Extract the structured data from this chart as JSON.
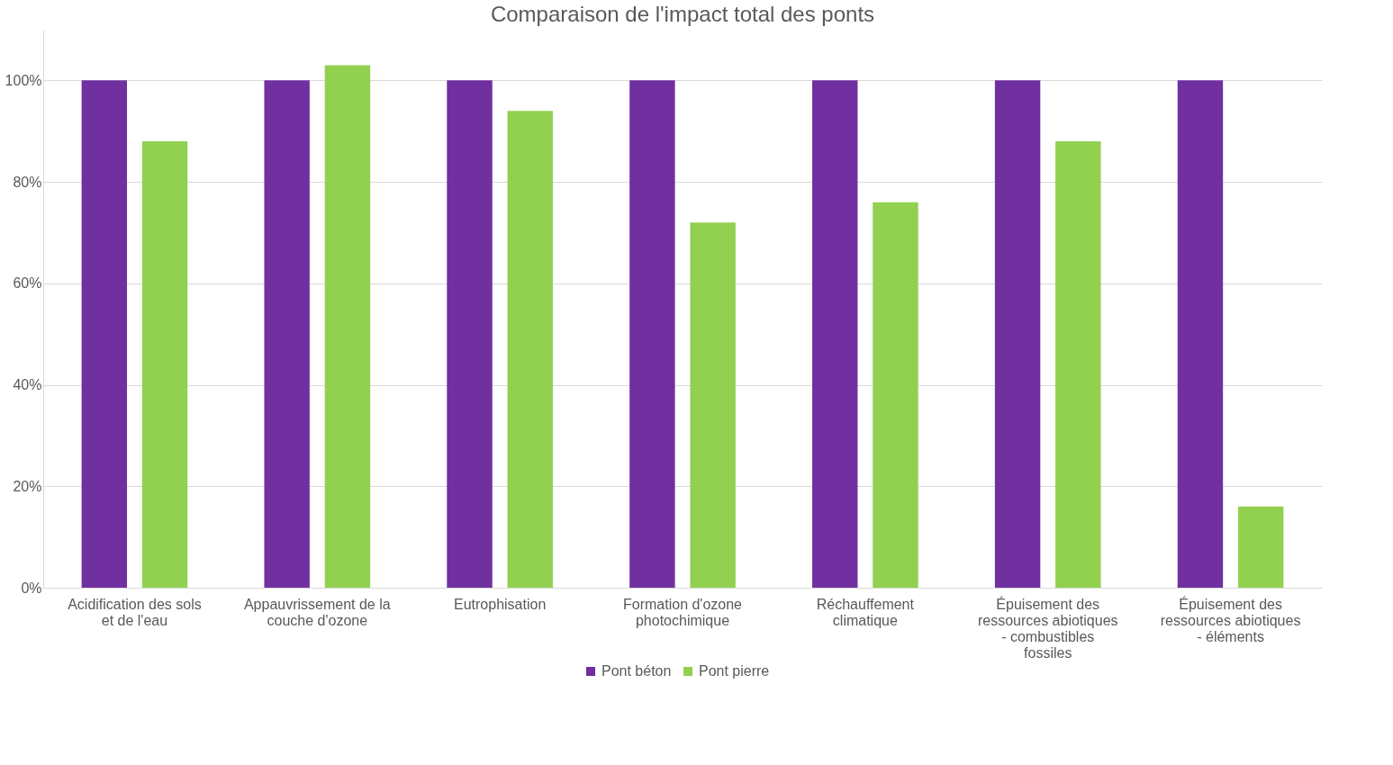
{
  "chart_data": {
    "type": "bar",
    "title": "Comparaison de l'impact total des ponts",
    "categories": [
      "Acidification des sols et de l'eau",
      "Appauvrissement de la couche d'ozone",
      "Eutrophisation",
      "Formation d'ozone photochimique",
      "Réchauffement climatique",
      "Épuisement des ressources abiotiques - combustibles fossiles",
      "Épuisement des ressources abiotiques - éléments"
    ],
    "series": [
      {
        "name": "Pont béton",
        "color": "#7030a0",
        "values": [
          100,
          100,
          100,
          100,
          100,
          100,
          100
        ]
      },
      {
        "name": "Pont pierre",
        "color": "#92d050",
        "values": [
          88,
          103,
          94,
          72,
          76,
          88,
          16
        ]
      }
    ],
    "ylim": [
      0,
      110
    ],
    "yticks": [
      {
        "value": 0,
        "label": "0%"
      },
      {
        "value": 20,
        "label": "20%"
      },
      {
        "value": 40,
        "label": "40%"
      },
      {
        "value": 60,
        "label": "60%"
      },
      {
        "value": 80,
        "label": "80%"
      },
      {
        "value": 100,
        "label": "100%"
      }
    ],
    "grid": "y",
    "legend": "bottom"
  }
}
